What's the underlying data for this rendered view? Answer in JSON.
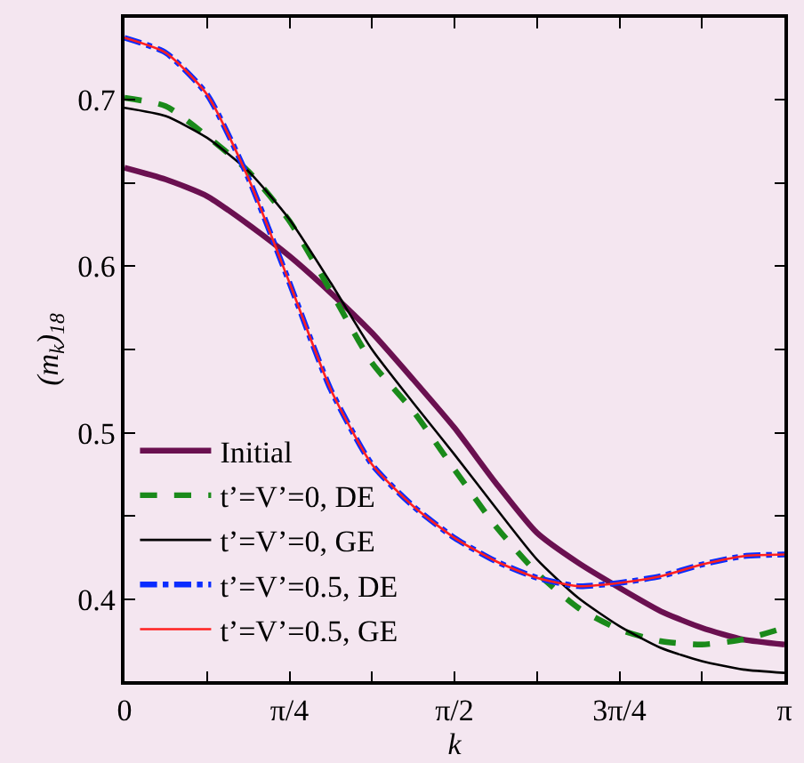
{
  "chart_data": {
    "type": "line",
    "xlabel": "k",
    "ylabel": "(m$_{k}$)$_{18}$",
    "x": [
      0,
      0.1963,
      0.3927,
      0.589,
      0.7854,
      0.9817,
      1.1781,
      1.3744,
      1.5708,
      1.7671,
      1.9635,
      2.1598,
      2.3562,
      2.5525,
      2.7489,
      2.9452,
      3.1416
    ],
    "series": [
      {
        "name": "Initial",
        "color": "#6a1050",
        "line_style": "solid",
        "values": [
          0.659,
          0.652,
          0.642,
          0.625,
          0.606,
          0.584,
          0.56,
          0.532,
          0.503,
          0.47,
          0.44,
          0.422,
          0.407,
          0.393,
          0.383,
          0.376,
          0.373
        ]
      },
      {
        "name": "t’=V’=0, DE",
        "color": "#1a8a1a",
        "line_style": "dashed",
        "values": [
          0.701,
          0.696,
          0.678,
          0.657,
          0.627,
          0.585,
          0.542,
          0.513,
          0.478,
          0.444,
          0.416,
          0.395,
          0.382,
          0.375,
          0.373,
          0.376,
          0.383
        ]
      },
      {
        "name": "t’=V’=0, GE",
        "color": "#000000",
        "line_style": "solid",
        "values": [
          0.695,
          0.69,
          0.677,
          0.657,
          0.628,
          0.59,
          0.55,
          0.518,
          0.487,
          0.455,
          0.424,
          0.401,
          0.384,
          0.371,
          0.363,
          0.358,
          0.356
        ]
      },
      {
        "name": "t’=V’=0.5, DE",
        "color": "#0a2cff",
        "line_style": "dashdot",
        "values": [
          0.737,
          0.728,
          0.703,
          0.653,
          0.59,
          0.526,
          0.481,
          0.456,
          0.437,
          0.423,
          0.413,
          0.408,
          0.41,
          0.414,
          0.421,
          0.426,
          0.427
        ]
      },
      {
        "name": "t’=V’=0.5, GE",
        "color": "#ff2020",
        "line_style": "solid",
        "values": [
          0.737,
          0.728,
          0.703,
          0.653,
          0.59,
          0.526,
          0.481,
          0.456,
          0.437,
          0.423,
          0.413,
          0.408,
          0.41,
          0.414,
          0.421,
          0.426,
          0.427
        ]
      }
    ],
    "xlim": [
      0,
      3.1416
    ],
    "xticks": [
      {
        "value": 0,
        "label": "0"
      },
      {
        "value": 0.3927,
        "label": null
      },
      {
        "value": 0.7854,
        "label": "π/4"
      },
      {
        "value": 1.1781,
        "label": null
      },
      {
        "value": 1.5708,
        "label": "π/2"
      },
      {
        "value": 1.9635,
        "label": null
      },
      {
        "value": 2.3562,
        "label": "3π/4"
      },
      {
        "value": 2.7489,
        "label": null
      },
      {
        "value": 3.1416,
        "label": "π"
      }
    ],
    "ylim": [
      0.351,
      0.749
    ],
    "yticks": [
      0.4,
      {
        "value": 0.45,
        "label": null
      },
      0.5,
      {
        "value": 0.55,
        "label": null
      },
      0.6,
      {
        "value": 0.65,
        "label": null
      },
      0.7
    ],
    "grid": false,
    "legend": "bottom left",
    "marker": "none"
  }
}
